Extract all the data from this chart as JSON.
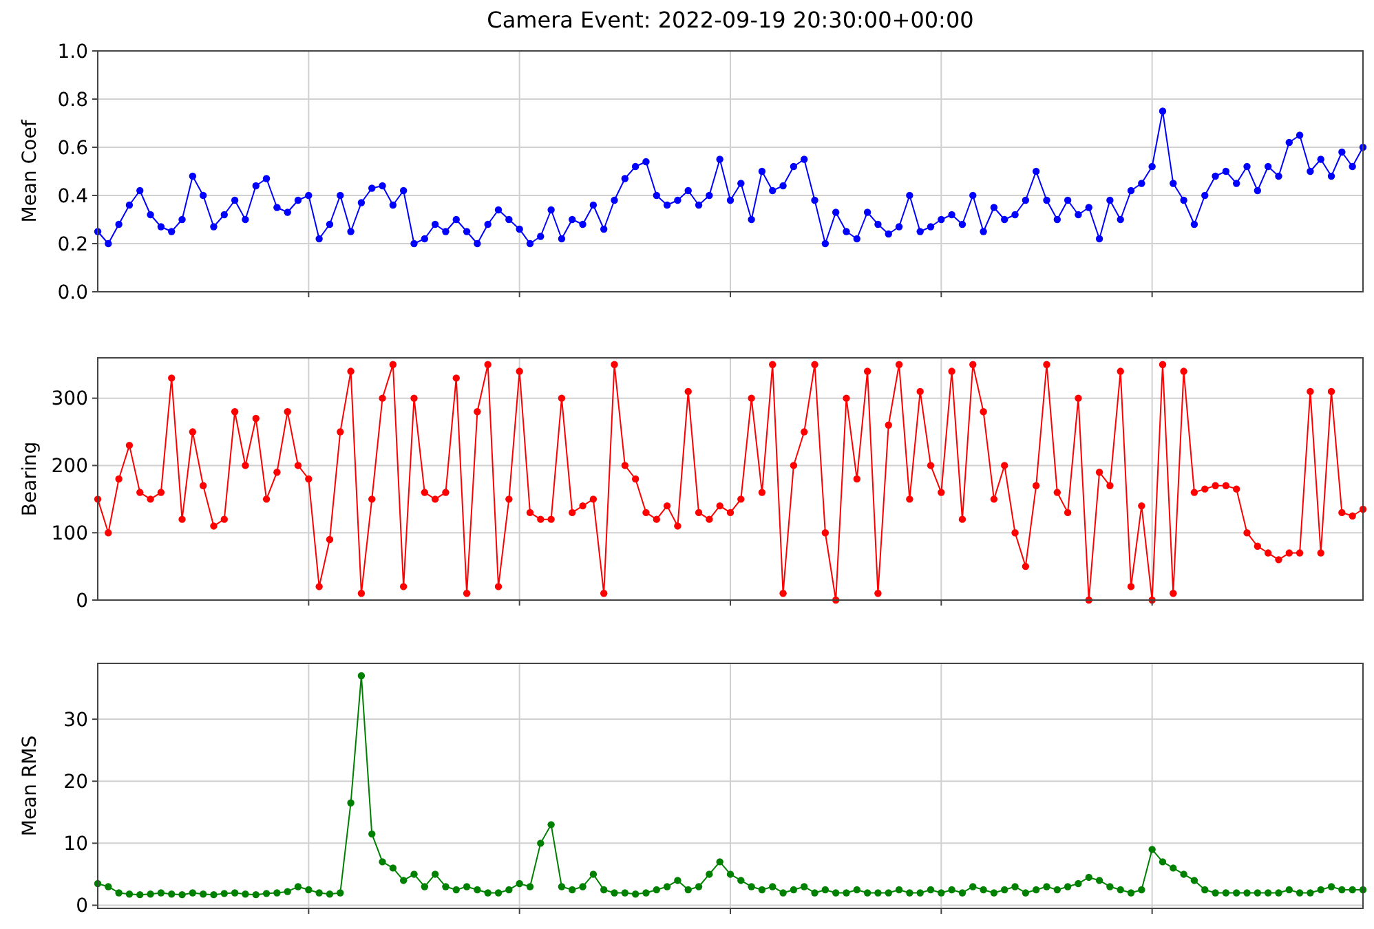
{
  "chart_data": [
    {
      "type": "line",
      "title": "Camera Event: 2022-09-19 20:30:00+00:00",
      "ylabel": "Mean Coef",
      "marker": "circle",
      "line_style": "solid",
      "grid": true,
      "tick_labels": "y",
      "categories": [
        null,
        null,
        null,
        null,
        null,
        null,
        null,
        null,
        null,
        null,
        null,
        null,
        null,
        null,
        null,
        null,
        null,
        null,
        null,
        null,
        null,
        null,
        null,
        null,
        null,
        null,
        null,
        null,
        null,
        null,
        null,
        null,
        null,
        null,
        null,
        null,
        null,
        null,
        null,
        null,
        null,
        null,
        null,
        null,
        null,
        null,
        null,
        null,
        null,
        null,
        null,
        null,
        null,
        null,
        null,
        null,
        null,
        null,
        null,
        null,
        null,
        null,
        null,
        null,
        null,
        null,
        null,
        null,
        null,
        null,
        null,
        null,
        null,
        null,
        null,
        null,
        null,
        null,
        null,
        null,
        null,
        null,
        null,
        null,
        null,
        null,
        null,
        null,
        null,
        null,
        null,
        null,
        null,
        null,
        null,
        null,
        null,
        null,
        null,
        null,
        null,
        null,
        null,
        null,
        null,
        null,
        null,
        null,
        null,
        null,
        null,
        null,
        null,
        null,
        null,
        null,
        null,
        null,
        null,
        null,
        null
      ],
      "ylim": [
        0,
        1
      ],
      "yticks": [
        {
          "value": 0,
          "label": "0.0"
        },
        {
          "value": 0.2,
          "label": "0.2"
        },
        {
          "value": 0.4,
          "label": "0.4"
        },
        {
          "value": 0.6,
          "label": "0.6"
        },
        {
          "value": 0.8,
          "label": "0.8"
        },
        {
          "value": 1,
          "label": "1.0"
        }
      ],
      "series": [
        {
          "color": "#0000ff",
          "values": [
            0.25,
            0.2,
            0.28,
            0.36,
            0.42,
            0.32,
            0.27,
            0.25,
            0.3,
            0.48,
            0.4,
            0.27,
            0.32,
            0.38,
            0.3,
            0.44,
            0.47,
            0.35,
            0.33,
            0.38,
            0.4,
            0.22,
            0.28,
            0.4,
            0.25,
            0.37,
            0.43,
            0.44,
            0.36,
            0.42,
            0.2,
            0.22,
            0.28,
            0.25,
            0.3,
            0.25,
            0.2,
            0.28,
            0.34,
            0.3,
            0.26,
            0.2,
            0.23,
            0.34,
            0.22,
            0.3,
            0.28,
            0.36,
            0.26,
            0.38,
            0.47,
            0.52,
            0.54,
            0.4,
            0.36,
            0.38,
            0.42,
            0.36,
            0.4,
            0.55,
            0.38,
            0.45,
            0.3,
            0.5,
            0.42,
            0.44,
            0.52,
            0.55,
            0.38,
            0.2,
            0.33,
            0.25,
            0.22,
            0.33,
            0.28,
            0.24,
            0.27,
            0.4,
            0.25,
            0.27,
            0.3,
            0.32,
            0.28,
            0.4,
            0.25,
            0.35,
            0.3,
            0.32,
            0.38,
            0.5,
            0.38,
            0.3,
            0.38,
            0.32,
            0.35,
            0.22,
            0.38,
            0.3,
            0.42,
            0.45,
            0.52,
            0.75,
            0.45,
            0.38,
            0.28,
            0.4,
            0.48,
            0.5,
            0.45,
            0.52,
            0.42,
            0.52,
            0.48,
            0.62,
            0.65,
            0.5,
            0.55,
            0.48,
            0.58,
            0.52,
            0.6
          ]
        }
      ]
    },
    {
      "type": "line",
      "ylabel": "Bearing",
      "marker": "circle",
      "line_style": "solid",
      "grid": true,
      "tick_labels": "y",
      "categories": [
        null,
        null,
        null,
        null,
        null,
        null,
        null,
        null,
        null,
        null,
        null,
        null,
        null,
        null,
        null,
        null,
        null,
        null,
        null,
        null,
        null,
        null,
        null,
        null,
        null,
        null,
        null,
        null,
        null,
        null,
        null,
        null,
        null,
        null,
        null,
        null,
        null,
        null,
        null,
        null,
        null,
        null,
        null,
        null,
        null,
        null,
        null,
        null,
        null,
        null,
        null,
        null,
        null,
        null,
        null,
        null,
        null,
        null,
        null,
        null,
        null,
        null,
        null,
        null,
        null,
        null,
        null,
        null,
        null,
        null,
        null,
        null,
        null,
        null,
        null,
        null,
        null,
        null,
        null,
        null,
        null,
        null,
        null,
        null,
        null,
        null,
        null,
        null,
        null,
        null,
        null,
        null,
        null,
        null,
        null,
        null,
        null,
        null,
        null,
        null,
        null,
        null,
        null,
        null,
        null,
        null,
        null,
        null,
        null,
        null,
        null,
        null,
        null,
        null,
        null,
        null,
        null,
        null,
        null,
        null,
        null
      ],
      "ylim": [
        0,
        360
      ],
      "yticks": [
        0,
        100,
        200,
        300
      ],
      "series": [
        {
          "color": "#ff0000",
          "values": [
            150,
            100,
            180,
            230,
            160,
            150,
            160,
            330,
            120,
            250,
            170,
            110,
            120,
            280,
            200,
            270,
            150,
            190,
            280,
            200,
            180,
            20,
            90,
            250,
            340,
            10,
            150,
            300,
            350,
            20,
            300,
            160,
            150,
            160,
            330,
            10,
            280,
            350,
            20,
            150,
            340,
            130,
            120,
            120,
            300,
            130,
            140,
            150,
            10,
            350,
            200,
            180,
            130,
            120,
            140,
            110,
            310,
            130,
            120,
            140,
            130,
            150,
            300,
            160,
            350,
            10,
            200,
            250,
            350,
            100,
            0,
            300,
            180,
            340,
            10,
            260,
            350,
            150,
            310,
            200,
            160,
            340,
            120,
            350,
            280,
            150,
            200,
            100,
            50,
            170,
            350,
            160,
            130,
            300,
            0,
            190,
            170,
            340,
            20,
            140,
            0,
            350,
            10,
            340,
            160,
            165,
            170,
            170,
            165,
            100,
            80,
            70,
            60,
            70,
            70,
            310,
            70,
            310,
            130,
            125,
            135
          ]
        }
      ]
    },
    {
      "type": "line",
      "ylabel": "Mean RMS",
      "marker": "circle",
      "line_style": "solid",
      "grid": true,
      "tick_labels": "y",
      "categories": [
        null,
        null,
        null,
        null,
        null,
        null,
        null,
        null,
        null,
        null,
        null,
        null,
        null,
        null,
        null,
        null,
        null,
        null,
        null,
        null,
        null,
        null,
        null,
        null,
        null,
        null,
        null,
        null,
        null,
        null,
        null,
        null,
        null,
        null,
        null,
        null,
        null,
        null,
        null,
        null,
        null,
        null,
        null,
        null,
        null,
        null,
        null,
        null,
        null,
        null,
        null,
        null,
        null,
        null,
        null,
        null,
        null,
        null,
        null,
        null,
        null,
        null,
        null,
        null,
        null,
        null,
        null,
        null,
        null,
        null,
        null,
        null,
        null,
        null,
        null,
        null,
        null,
        null,
        null,
        null,
        null,
        null,
        null,
        null,
        null,
        null,
        null,
        null,
        null,
        null,
        null,
        null,
        null,
        null,
        null,
        null,
        null,
        null,
        null,
        null,
        null,
        null,
        null,
        null,
        null,
        null,
        null,
        null,
        null,
        null,
        null,
        null,
        null,
        null,
        null,
        null,
        null,
        null,
        null,
        null,
        null
      ],
      "ylim": [
        -0.5,
        39
      ],
      "yticks": [
        0,
        10,
        20,
        30
      ],
      "series": [
        {
          "color": "#008000",
          "values": [
            3.5,
            3,
            2,
            1.8,
            1.7,
            1.8,
            2,
            1.8,
            1.7,
            2,
            1.8,
            1.7,
            1.9,
            2,
            1.8,
            1.7,
            1.9,
            2,
            2.2,
            3,
            2.5,
            2,
            1.8,
            2,
            16.5,
            37,
            11.5,
            7,
            6,
            4,
            5,
            3,
            5,
            3,
            2.5,
            3,
            2.5,
            2,
            2,
            2.5,
            3.5,
            3,
            10,
            13,
            3,
            2.5,
            3,
            5,
            2.5,
            2,
            2,
            1.8,
            2,
            2.5,
            3,
            4,
            2.5,
            3,
            5,
            7,
            5,
            4,
            3,
            2.5,
            3,
            2,
            2.5,
            3,
            2,
            2.5,
            2,
            2,
            2.5,
            2,
            2,
            2,
            2.5,
            2,
            2,
            2.5,
            2,
            2.5,
            2,
            3,
            2.5,
            2,
            2.5,
            3,
            2,
            2.5,
            3,
            2.5,
            3,
            3.5,
            4.5,
            4,
            3,
            2.5,
            2,
            2.5,
            9,
            7,
            6,
            5,
            4,
            2.5,
            2,
            2,
            2,
            2,
            2,
            2,
            2,
            2.5,
            2,
            2,
            2.5,
            3,
            2.5,
            2.5,
            2.5
          ]
        }
      ]
    }
  ]
}
